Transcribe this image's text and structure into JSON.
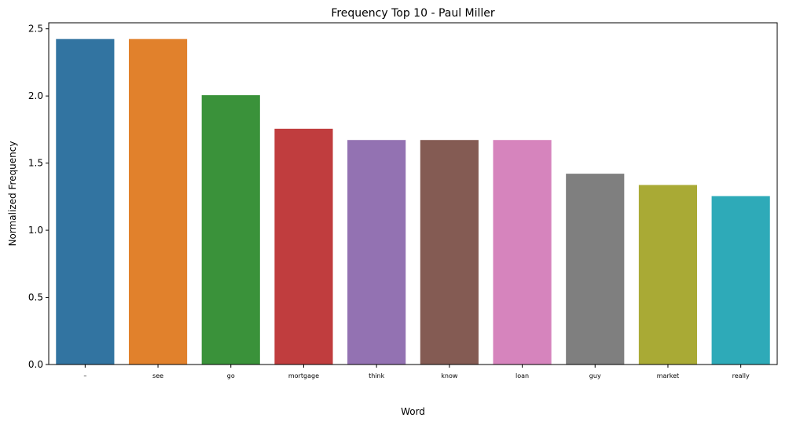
{
  "chart_data": {
    "type": "bar",
    "title": "Frequency Top 10 - Paul Miller",
    "xlabel": "Word",
    "ylabel": "Normalized Frequency",
    "categories": [
      "–",
      "see",
      "go",
      "mortgage",
      "think",
      "know",
      "loan",
      "guy",
      "market",
      "really"
    ],
    "values": [
      2.424,
      2.424,
      2.006,
      1.756,
      1.672,
      1.672,
      1.672,
      1.421,
      1.337,
      1.254
    ],
    "ylim": [
      0,
      2.545
    ],
    "yticks": [
      0.0,
      0.5,
      1.0,
      1.5,
      2.0,
      2.5
    ],
    "ytick_labels": [
      "0.0",
      "0.5",
      "1.0",
      "1.5",
      "2.0",
      "2.5"
    ],
    "colors": [
      "#3274a1",
      "#e1812c",
      "#3a923a",
      "#c03d3e",
      "#9372b2",
      "#845b53",
      "#d684bd",
      "#7f7f7f",
      "#a9aa35",
      "#2eaab8"
    ],
    "grid": false,
    "legend": "none"
  }
}
